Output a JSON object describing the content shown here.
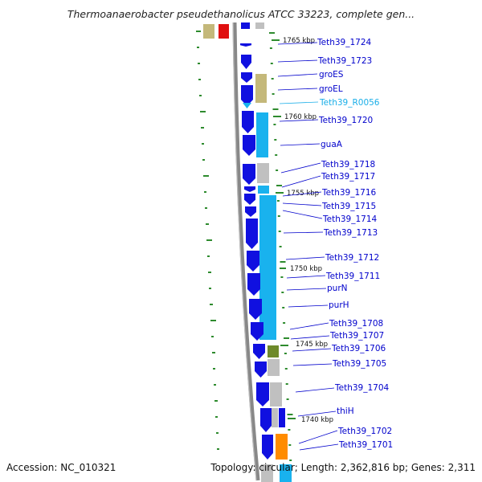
{
  "title": "Thermoanaerobacter pseudethanolicus ATCC 33223, complete gen...",
  "accession": "Accession: NC_010321",
  "topology": "Topology: circular; Length: 2,362,816 bp; Genes: 2,311",
  "colors": {
    "label": "#0000cc",
    "rna_label": "#19aee8",
    "arrow": "#1010e0",
    "backbone": "#888888",
    "tick": "#2e8b2e",
    "cog_tan": "#c4b87a",
    "cog_red": "#e01010",
    "cog_cyan": "#19b2ee",
    "cog_gray": "#c0c0c0",
    "cog_olive": "#6e8a2a",
    "cog_orange": "#ff8c00"
  },
  "kbp_marks": [
    "1765 kbp",
    "1760 kbp",
    "1755 kbp",
    "1750 kbp",
    "1745 kbp",
    "1740 kbp"
  ],
  "genes": [
    {
      "name": "Teth39_1724",
      "type": "cds"
    },
    {
      "name": "Teth39_1723",
      "type": "cds"
    },
    {
      "name": "groES",
      "type": "cds"
    },
    {
      "name": "groEL",
      "type": "cds"
    },
    {
      "name": "Teth39_R0056",
      "type": "rna"
    },
    {
      "name": "Teth39_1720",
      "type": "cds"
    },
    {
      "name": "guaA",
      "type": "cds"
    },
    {
      "name": "Teth39_1718",
      "type": "cds"
    },
    {
      "name": "Teth39_1717",
      "type": "cds"
    },
    {
      "name": "Teth39_1716",
      "type": "cds"
    },
    {
      "name": "Teth39_1715",
      "type": "cds"
    },
    {
      "name": "Teth39_1714",
      "type": "cds"
    },
    {
      "name": "Teth39_1713",
      "type": "cds"
    },
    {
      "name": "Teth39_1712",
      "type": "cds"
    },
    {
      "name": "Teth39_1711",
      "type": "cds"
    },
    {
      "name": "purN",
      "type": "cds"
    },
    {
      "name": "purH",
      "type": "cds"
    },
    {
      "name": "Teth39_1708",
      "type": "cds"
    },
    {
      "name": "Teth39_1707",
      "type": "cds"
    },
    {
      "name": "Teth39_1706",
      "type": "cds"
    },
    {
      "name": "Teth39_1705",
      "type": "cds"
    },
    {
      "name": "Teth39_1704",
      "type": "cds"
    },
    {
      "name": "thiH",
      "type": "cds"
    },
    {
      "name": "Teth39_1702",
      "type": "cds"
    },
    {
      "name": "Teth39_1701",
      "type": "cds"
    }
  ]
}
